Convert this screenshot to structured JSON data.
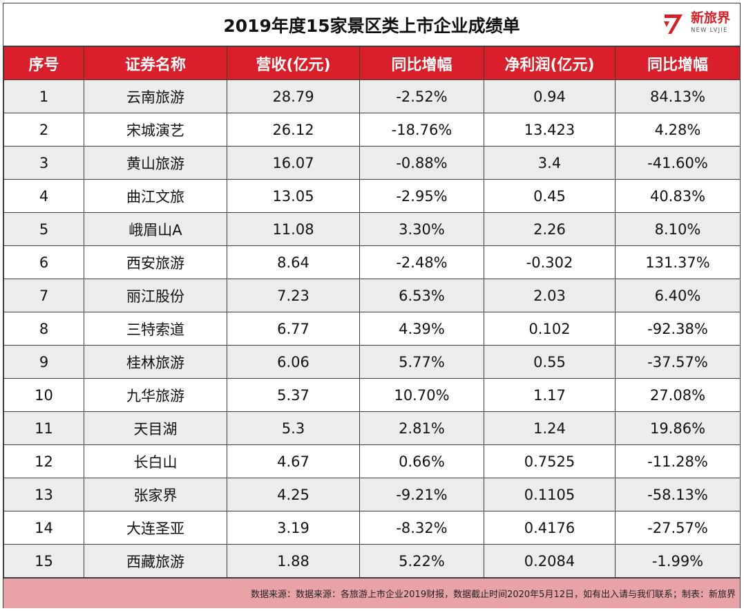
{
  "title": "2019年度15家景区类上市企业成绩单",
  "logo": {
    "cn": "新旅界",
    "en": "NEW LVJIE",
    "icon": "nl-logo-icon",
    "color": "#d61f26"
  },
  "table": {
    "headers": [
      "序号",
      "证券名称",
      "营收(亿元)",
      "同比增幅",
      "净利润(亿元)",
      "同比增幅"
    ],
    "rows": [
      [
        "1",
        "云南旅游",
        "28.79",
        "-2.52%",
        "0.94",
        "84.13%"
      ],
      [
        "2",
        "宋城演艺",
        "26.12",
        "-18.76%",
        "13.423",
        "4.28%"
      ],
      [
        "3",
        "黄山旅游",
        "16.07",
        "-0.88%",
        "3.4",
        "-41.60%"
      ],
      [
        "4",
        "曲江文旅",
        "13.05",
        "-2.95%",
        "0.45",
        "40.83%"
      ],
      [
        "5",
        "峨眉山A",
        "11.08",
        "3.30%",
        "2.26",
        "8.10%"
      ],
      [
        "6",
        "西安旅游",
        "8.64",
        "-2.48%",
        "-0.302",
        "131.37%"
      ],
      [
        "7",
        "丽江股份",
        "7.23",
        "6.53%",
        "2.03",
        "6.40%"
      ],
      [
        "8",
        "三特索道",
        "6.77",
        "4.39%",
        "0.102",
        "-92.38%"
      ],
      [
        "9",
        "桂林旅游",
        "6.06",
        "5.77%",
        "0.55",
        "-37.57%"
      ],
      [
        "10",
        "九华旅游",
        "5.37",
        "10.70%",
        "1.17",
        "27.08%"
      ],
      [
        "11",
        "天目湖",
        "5.3",
        "2.81%",
        "1.24",
        "19.86%"
      ],
      [
        "12",
        "长白山",
        "4.67",
        "0.66%",
        "0.7525",
        "-11.28%"
      ],
      [
        "13",
        "张家界",
        "4.25",
        "-9.21%",
        "0.1105",
        "-58.13%"
      ],
      [
        "14",
        "大连圣亚",
        "3.19",
        "-8.32%",
        "0.4176",
        "-27.57%"
      ],
      [
        "15",
        "西藏旅游",
        "1.88",
        "5.22%",
        "0.2084",
        "-1.99%"
      ]
    ]
  },
  "footer": "数据来源：数据来源：各旅游上市企业2019财报，数据截止时间2020年5月12日，如有出入请与我们联系；制表：新旅界",
  "colors": {
    "header_bg": "#d9202a",
    "stripe": "#ececec",
    "footer_bg": "#e8a3a7"
  }
}
